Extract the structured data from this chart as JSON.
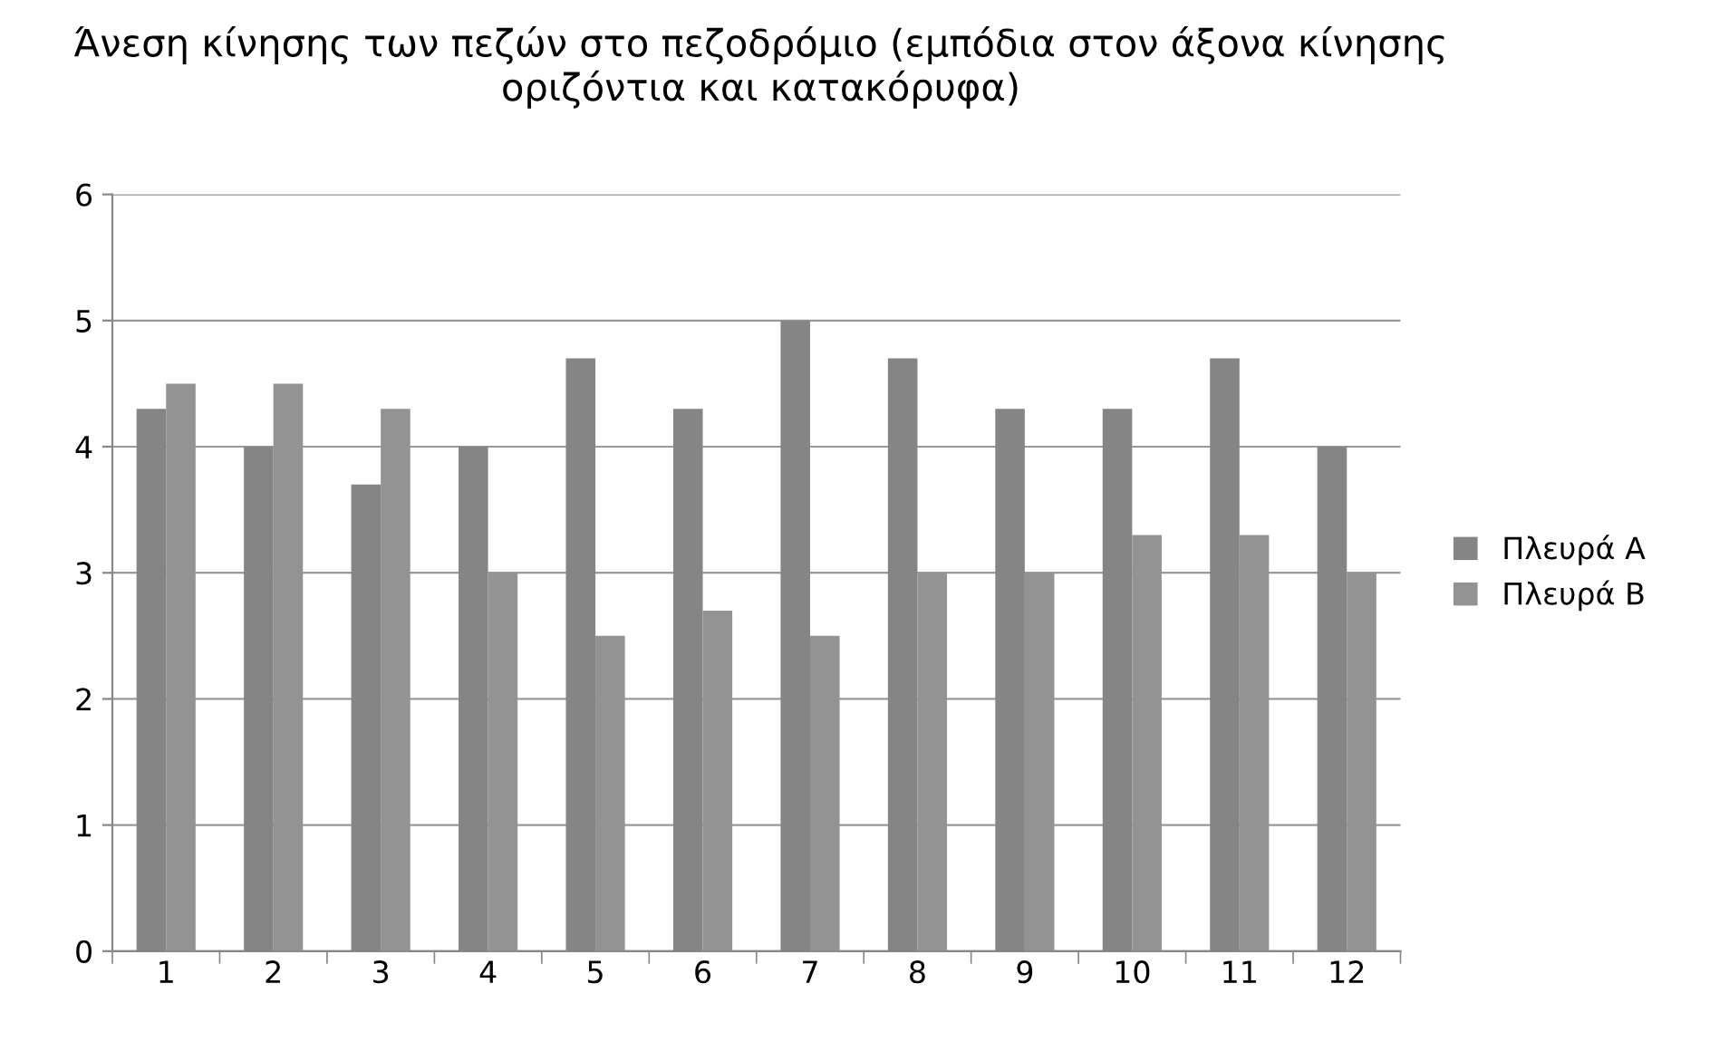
{
  "chart_data": {
    "type": "bar",
    "title": "Άνεση κίνησης των πεζών στο πεζοδρόμιο (εμπόδια στον άξονα κίνησης οριζόντια και κατακόρυφα)",
    "categories": [
      "1",
      "2",
      "3",
      "4",
      "5",
      "6",
      "7",
      "8",
      "9",
      "10",
      "11",
      "12"
    ],
    "series": [
      {
        "name": "Πλευρά Α",
        "color": "#858585",
        "values": [
          4.3,
          4.0,
          3.7,
          4.0,
          4.7,
          4.3,
          5.0,
          4.7,
          4.3,
          4.3,
          4.7,
          4.0
        ]
      },
      {
        "name": "Πλευρά Β",
        "color": "#939393",
        "values": [
          4.5,
          4.5,
          4.3,
          3.0,
          2.5,
          2.7,
          2.5,
          3.0,
          3.0,
          3.3,
          3.3,
          3.0
        ]
      }
    ],
    "ylim": [
      0,
      6
    ],
    "yticks": [
      0,
      1,
      2,
      3,
      4,
      5,
      6
    ],
    "grid": "y",
    "legend": "right"
  }
}
